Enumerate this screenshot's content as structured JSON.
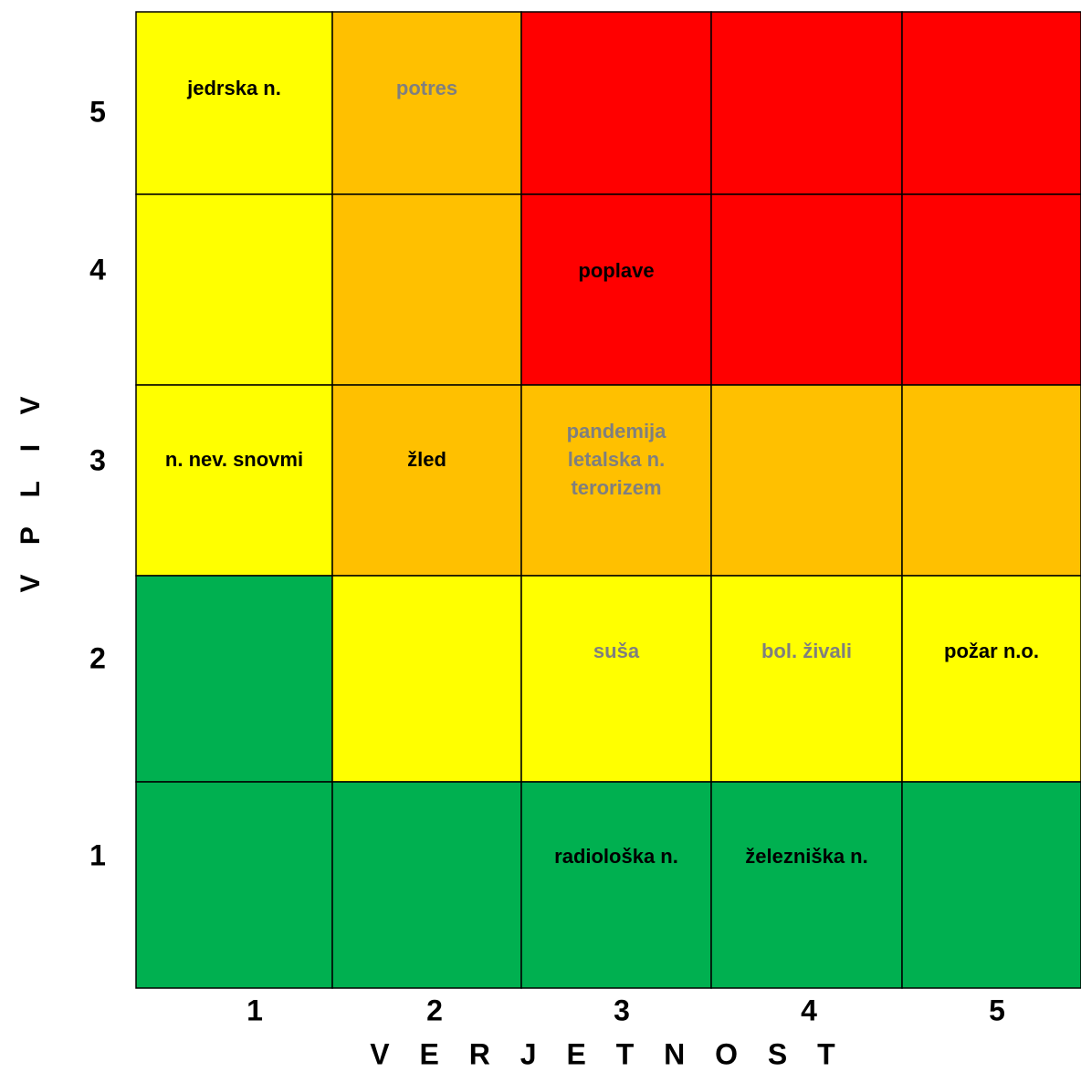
{
  "chart_data": {
    "type": "heatmap",
    "title": "",
    "xlabel": "V E R J E T N O S T",
    "ylabel": "V P L I V",
    "x_ticks": [
      "1",
      "2",
      "3",
      "4",
      "5"
    ],
    "y_ticks": [
      "1",
      "2",
      "3",
      "4",
      "5"
    ],
    "color_scale": {
      "green": "#00B050",
      "yellow": "#FFFF00",
      "orange": "#FFC000",
      "red": "#FF0000"
    },
    "cells": [
      {
        "x": 1,
        "y": 5,
        "color": "yellow",
        "labels": [
          "jedrska n."
        ],
        "label_color": "#000000"
      },
      {
        "x": 2,
        "y": 5,
        "color": "orange",
        "labels": [
          "potres"
        ],
        "label_color": "#7F7F7F"
      },
      {
        "x": 3,
        "y": 5,
        "color": "red",
        "labels": [],
        "label_color": "#000000"
      },
      {
        "x": 4,
        "y": 5,
        "color": "red",
        "labels": [],
        "label_color": "#000000"
      },
      {
        "x": 5,
        "y": 5,
        "color": "red",
        "labels": [],
        "label_color": "#000000"
      },
      {
        "x": 1,
        "y": 4,
        "color": "yellow",
        "labels": [],
        "label_color": "#000000"
      },
      {
        "x": 2,
        "y": 4,
        "color": "orange",
        "labels": [],
        "label_color": "#000000"
      },
      {
        "x": 3,
        "y": 4,
        "color": "red",
        "labels": [
          "poplave"
        ],
        "label_color": "#000000"
      },
      {
        "x": 4,
        "y": 4,
        "color": "red",
        "labels": [],
        "label_color": "#000000"
      },
      {
        "x": 5,
        "y": 4,
        "color": "red",
        "labels": [],
        "label_color": "#000000"
      },
      {
        "x": 1,
        "y": 3,
        "color": "yellow",
        "labels": [
          "n. nev. snovmi"
        ],
        "label_color": "#000000"
      },
      {
        "x": 2,
        "y": 3,
        "color": "orange",
        "labels": [
          "žled"
        ],
        "label_color": "#000000"
      },
      {
        "x": 3,
        "y": 3,
        "color": "orange",
        "labels": [
          "pandemija",
          "letalska n.",
          "terorizem"
        ],
        "label_color": "#7F7F7F"
      },
      {
        "x": 4,
        "y": 3,
        "color": "orange",
        "labels": [],
        "label_color": "#000000"
      },
      {
        "x": 5,
        "y": 3,
        "color": "orange",
        "labels": [],
        "label_color": "#000000"
      },
      {
        "x": 1,
        "y": 2,
        "color": "green",
        "labels": [],
        "label_color": "#000000"
      },
      {
        "x": 2,
        "y": 2,
        "color": "yellow",
        "labels": [],
        "label_color": "#000000"
      },
      {
        "x": 3,
        "y": 2,
        "color": "yellow",
        "labels": [
          "suša"
        ],
        "label_color": "#7F7F7F"
      },
      {
        "x": 4,
        "y": 2,
        "color": "yellow",
        "labels": [
          "bol. živali"
        ],
        "label_color": "#7F7F7F"
      },
      {
        "x": 5,
        "y": 2,
        "color": "yellow",
        "labels": [
          "požar n.o."
        ],
        "label_color": "#000000"
      },
      {
        "x": 1,
        "y": 1,
        "color": "green",
        "labels": [],
        "label_color": "#000000"
      },
      {
        "x": 2,
        "y": 1,
        "color": "green",
        "labels": [],
        "label_color": "#000000"
      },
      {
        "x": 3,
        "y": 1,
        "color": "green",
        "labels": [
          "radiološka n."
        ],
        "label_color": "#000000"
      },
      {
        "x": 4,
        "y": 1,
        "color": "green",
        "labels": [
          "železniška n."
        ],
        "label_color": "#000000"
      },
      {
        "x": 5,
        "y": 1,
        "color": "green",
        "labels": [],
        "label_color": "#000000"
      }
    ]
  }
}
